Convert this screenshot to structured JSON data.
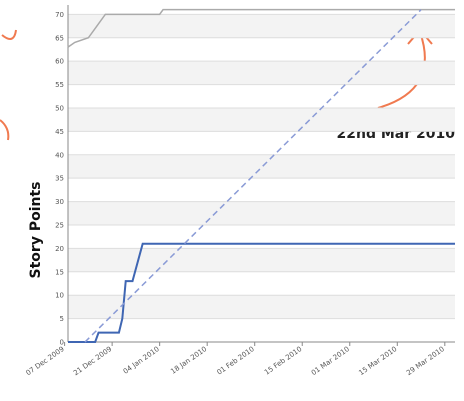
{
  "chart_data": {
    "type": "line",
    "ylabel": "Story Points",
    "annotation": "22nd Mar 2010",
    "xlim": [
      "2009-12-08",
      "2010-04-01"
    ],
    "ylim": [
      0,
      72
    ],
    "yticks": [
      0,
      5,
      10,
      15,
      20,
      25,
      30,
      35,
      40,
      45,
      50,
      55,
      60,
      65,
      70
    ],
    "xticks": [
      {
        "value": "2009-12-07",
        "label": "07 Dec 2009"
      },
      {
        "value": "2009-12-21",
        "label": "21 Dec 2009"
      },
      {
        "value": "2010-01-04",
        "label": "04 Jan 2010"
      },
      {
        "value": "2010-01-18",
        "label": "18 Jan 2010"
      },
      {
        "value": "2010-02-01",
        "label": "01 Feb 2010"
      },
      {
        "value": "2010-02-15",
        "label": "15 Feb 2010"
      },
      {
        "value": "2010-03-01",
        "label": "01 Mar 2010"
      },
      {
        "value": "2010-03-15",
        "label": "15 Mar 2010"
      },
      {
        "value": "2010-03-29",
        "label": "29 Mar 2010"
      }
    ],
    "grid": true,
    "series": [
      {
        "color": "#aaaaaa",
        "dash": false,
        "x": [
          "2009-12-08",
          "2009-12-10",
          "2009-12-14",
          "2009-12-16",
          "2009-12-19",
          "2010-01-04",
          "2010-01-05",
          "2010-04-01"
        ],
        "values": [
          63,
          64,
          65,
          67,
          70,
          70,
          71,
          71
        ]
      },
      {
        "color": "#3f66b3",
        "dash": false,
        "x": [
          "2009-12-08",
          "2009-12-16",
          "2009-12-17",
          "2009-12-23",
          "2009-12-24",
          "2009-12-25",
          "2009-12-27",
          "2009-12-30",
          "2010-04-01"
        ],
        "values": [
          0,
          0,
          2,
          2,
          5,
          13,
          13,
          21,
          21
        ]
      },
      {
        "color": "#8a9bd6",
        "dash": true,
        "x": [
          "2009-12-13",
          "2010-03-22"
        ],
        "values": [
          0,
          71
        ]
      }
    ]
  }
}
